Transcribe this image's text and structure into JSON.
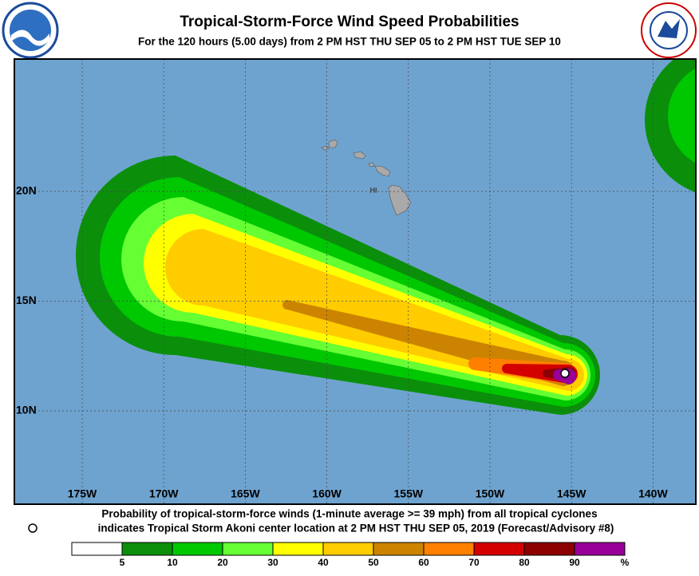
{
  "header": {
    "title": "Tropical-Storm-Force Wind Speed Probabilities",
    "subtitle": "For the 120 hours (5.00 days) from 2 PM HST THU SEP 05 to 2 PM HST TUE SEP 10"
  },
  "map": {
    "longitude_labels": [
      "175W",
      "170W",
      "165W",
      "160W",
      "155W",
      "150W",
      "145W",
      "140W"
    ],
    "latitude_labels": [
      "20N",
      "15N",
      "10N"
    ],
    "place_labels": [
      "HI"
    ]
  },
  "footer": {
    "caption_lines": [
      "Probability of tropical-storm-force winds (1-minute average >= 39 mph) from all tropical cyclones",
      "indicates Tropical Storm Akoni center location at 2 PM HST THU SEP 05, 2019 (Forecast/Advisory #8)"
    ]
  },
  "legend": {
    "colors": [
      "#ffffff",
      "#0b8f0b",
      "#00c800",
      "#66ff33",
      "#ffff00",
      "#ffcc00",
      "#cc8400",
      "#ff8000",
      "#d40000",
      "#8c0000",
      "#990099"
    ],
    "ticks": [
      5,
      10,
      20,
      30,
      40,
      50,
      60,
      70,
      80,
      90
    ],
    "unit": "%"
  }
}
